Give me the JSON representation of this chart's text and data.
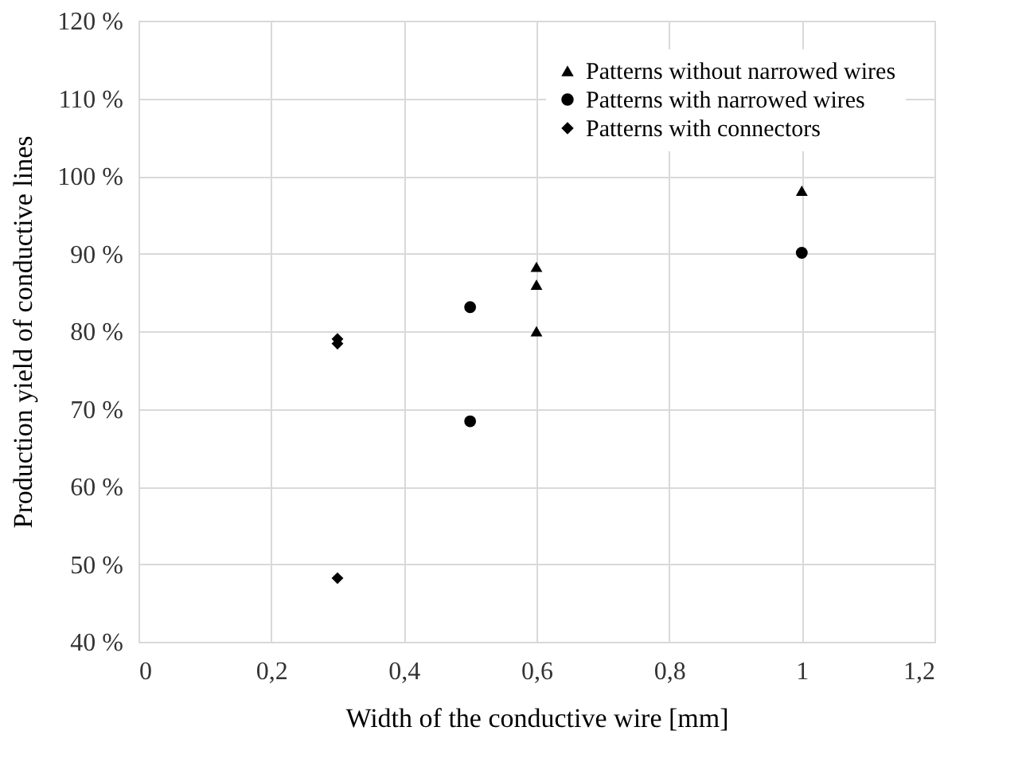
{
  "chart_data": {
    "type": "scatter",
    "xlabel": "Width of the conductive wire [mm]",
    "ylabel": "Production yield of conductive lines",
    "xlim": [
      0,
      1.2
    ],
    "xticks": [
      0,
      {
        "value": 0.2,
        "label": "0,2"
      },
      {
        "value": 0.4,
        "label": "0,4"
      },
      {
        "value": 0.6,
        "label": "0,6"
      },
      {
        "value": 0.8,
        "label": "0,8"
      },
      1,
      {
        "value": 1.2,
        "label": "1,2"
      }
    ],
    "ylim": [
      40,
      120
    ],
    "yticks": [
      {
        "value": 40,
        "label": "40 %"
      },
      {
        "value": 50,
        "label": "50 %"
      },
      {
        "value": 60,
        "label": "60 %"
      },
      {
        "value": 70,
        "label": "70 %"
      },
      {
        "value": 80,
        "label": "80 %"
      },
      {
        "value": 90,
        "label": "90 %"
      },
      {
        "value": 100,
        "label": "100 %"
      },
      {
        "value": 110,
        "label": "110 %"
      },
      {
        "value": 120,
        "label": "120 %"
      }
    ],
    "grid": true,
    "legend": "top right",
    "series": [
      {
        "name": "Patterns without narrowed wires",
        "color": "#000000",
        "marker": "triangle",
        "x": [
          1,
          0.6,
          0.6,
          0.6
        ],
        "values": [
          98.1,
          88.3,
          86.0,
          80.0
        ]
      },
      {
        "name": "Patterns with narrowed wires",
        "color": "#000000",
        "marker": "circle",
        "x": [
          1,
          0.5,
          0.5
        ],
        "values": [
          90.1,
          83.1,
          68.4
        ]
      },
      {
        "name": "Patterns with connectors",
        "color": "#000000",
        "marker": "diamond",
        "x": [
          0.3,
          0.3,
          0.3
        ],
        "values": [
          79.0,
          78.4,
          48.2
        ]
      }
    ]
  }
}
